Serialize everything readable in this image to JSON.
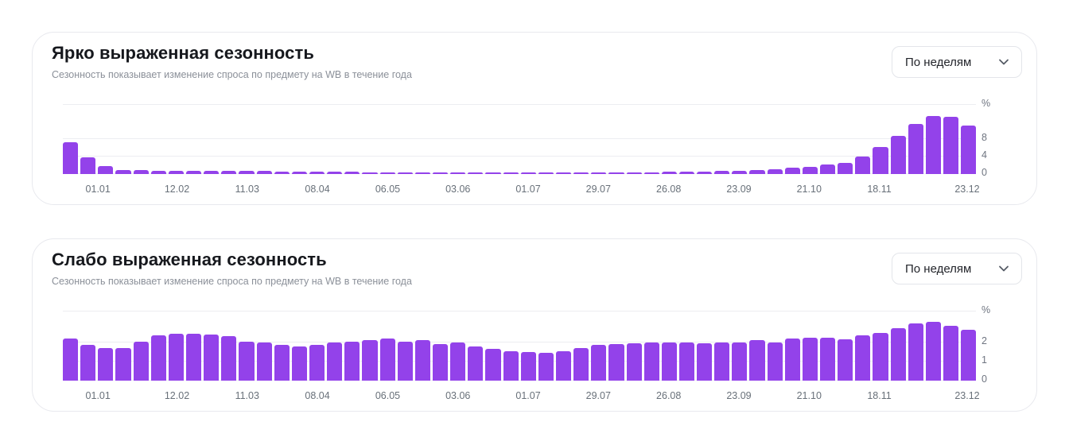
{
  "cards": [
    {
      "title": "Ярко выраженная сезонность",
      "subtitle": "Сезонность показывает изменение спроса по предмету на WB в течение года",
      "dropdown_value": "По неделям"
    },
    {
      "title": "Слабо выраженная сезонность",
      "subtitle": "Сезонность показывает изменение спроса по предмету на WB в течение года",
      "dropdown_value": "По неделям"
    }
  ],
  "colors": {
    "bar": "#9342ea",
    "grid": "#ecedf1",
    "axis_text": "#6f7581",
    "title_text": "#16181d",
    "subtitle_text": "#8b9099",
    "card_border": "#e8e9ee",
    "chevron": "#555c66"
  },
  "chart_data": [
    {
      "type": "bar",
      "title": "Ярко выраженная сезонность",
      "unit": "%",
      "n_bars": 52,
      "ymax": 15.8,
      "y_ticks": [
        8,
        4,
        0
      ],
      "grid": true,
      "legend": "none",
      "x_labels": [
        {
          "text": "01.01",
          "index": 1.5
        },
        {
          "text": "12.02",
          "index": 6
        },
        {
          "text": "11.03",
          "index": 10
        },
        {
          "text": "08.04",
          "index": 14
        },
        {
          "text": "06.05",
          "index": 18
        },
        {
          "text": "03.06",
          "index": 22
        },
        {
          "text": "01.07",
          "index": 26
        },
        {
          "text": "29.07",
          "index": 30
        },
        {
          "text": "26.08",
          "index": 34
        },
        {
          "text": "23.09",
          "index": 38
        },
        {
          "text": "21.10",
          "index": 42
        },
        {
          "text": "18.11",
          "index": 46
        },
        {
          "text": "23.12",
          "index": 51
        }
      ],
      "values": [
        7.3,
        3.8,
        1.8,
        0.95,
        0.85,
        0.8,
        0.8,
        0.8,
        0.75,
        0.7,
        0.7,
        0.65,
        0.6,
        0.6,
        0.55,
        0.5,
        0.5,
        0.45,
        0.45,
        0.4,
        0.4,
        0.35,
        0.35,
        0.3,
        0.3,
        0.3,
        0.3,
        0.3,
        0.3,
        0.3,
        0.3,
        0.3,
        0.35,
        0.4,
        0.5,
        0.55,
        0.6,
        0.65,
        0.75,
        0.9,
        1.1,
        1.4,
        1.7,
        2.1,
        2.6,
        4.0,
        6.2,
        8.7,
        11.5,
        13.2,
        13.1,
        11.0
      ]
    },
    {
      "type": "bar",
      "title": "Слабо выраженная сезонность",
      "unit": "%",
      "n_bars": 52,
      "ymax": 3.6,
      "y_ticks": [
        2,
        1,
        0
      ],
      "grid": true,
      "legend": "none",
      "x_labels": [
        {
          "text": "01.01",
          "index": 1.5
        },
        {
          "text": "12.02",
          "index": 6
        },
        {
          "text": "11.03",
          "index": 10
        },
        {
          "text": "08.04",
          "index": 14
        },
        {
          "text": "06.05",
          "index": 18
        },
        {
          "text": "03.06",
          "index": 22
        },
        {
          "text": "01.07",
          "index": 26
        },
        {
          "text": "29.07",
          "index": 30
        },
        {
          "text": "26.08",
          "index": 34
        },
        {
          "text": "23.09",
          "index": 38
        },
        {
          "text": "21.10",
          "index": 42
        },
        {
          "text": "18.11",
          "index": 46
        },
        {
          "text": "23.12",
          "index": 51
        }
      ],
      "values": [
        2.2,
        1.85,
        1.7,
        1.7,
        2.05,
        2.35,
        2.45,
        2.45,
        2.4,
        2.3,
        2.05,
        2.0,
        1.85,
        1.8,
        1.85,
        2.0,
        2.05,
        2.1,
        2.2,
        2.05,
        2.1,
        1.9,
        2.0,
        1.8,
        1.65,
        1.55,
        1.5,
        1.45,
        1.55,
        1.7,
        1.85,
        1.9,
        1.95,
        2.0,
        2.0,
        2.0,
        1.95,
        2.0,
        2.0,
        2.1,
        2.0,
        2.2,
        2.25,
        2.25,
        2.15,
        2.35,
        2.5,
        2.75,
        3.0,
        3.05,
        2.85,
        2.65
      ]
    }
  ]
}
